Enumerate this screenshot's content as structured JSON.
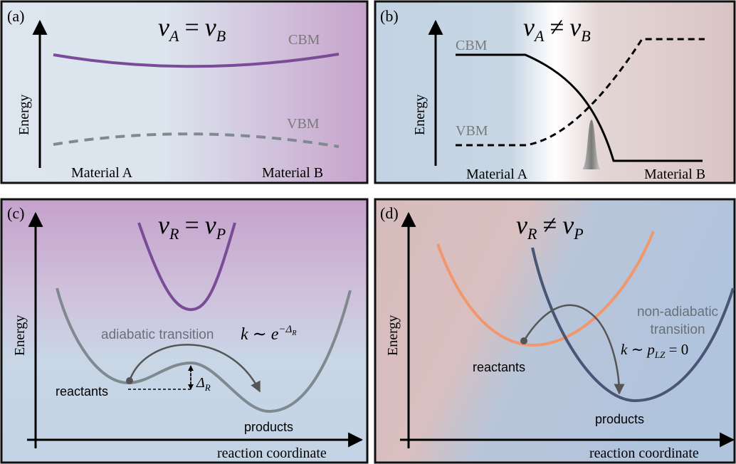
{
  "panel_a": {
    "label": "(a)",
    "title_main": "ν",
    "title_sub1": "A",
    "title_rel": "=",
    "title_main2": "ν",
    "title_sub2": "B",
    "cbm": "CBM",
    "vbm": "VBM",
    "ylabel": "Energy",
    "left_label": "Material A",
    "right_label": "Material B"
  },
  "panel_b": {
    "label": "(b)",
    "title_main": "ν",
    "title_sub1": "A",
    "title_rel": "≠",
    "title_main2": "ν",
    "title_sub2": "B",
    "cbm": "CBM",
    "vbm": "VBM",
    "ylabel": "Energy",
    "left_label": "Material A",
    "right_label": "Material B"
  },
  "panel_c": {
    "label": "(c)",
    "title_main": "ν",
    "title_sub1": "R",
    "title_rel": "=",
    "title_main2": "ν",
    "title_sub2": "P",
    "ylabel": "Energy",
    "xlabel": "reaction coordinate",
    "transition": "adiabatic transition",
    "rate_k": "k ∼ e",
    "rate_exp": "−Δ",
    "rate_exp_sub": "R",
    "delta": "Δ",
    "delta_sub": "R",
    "reactants": "reactants",
    "products": "products"
  },
  "panel_d": {
    "label": "(d)",
    "title_main": "ν",
    "title_sub1": "R",
    "title_rel": "≠",
    "title_main2": "ν",
    "title_sub2": "P",
    "ylabel": "Energy",
    "xlabel": "reaction coordinate",
    "transition_line1": "non-adiabatic",
    "transition_line2": "transition",
    "rate_k": "k ∼ p",
    "rate_sub": "LZ",
    "rate_eq": " = 0",
    "reactants": "reactants",
    "products": "products"
  },
  "colors": {
    "blue_bg": "#c2d3e3",
    "purple_bg": "#c7a3cc",
    "rose_bg": "#d8bcbb",
    "purple_curve": "#7a4b96",
    "gray_curve": "#808890",
    "orange_curve": "#f0976e",
    "navy_curve": "#4a5575"
  }
}
